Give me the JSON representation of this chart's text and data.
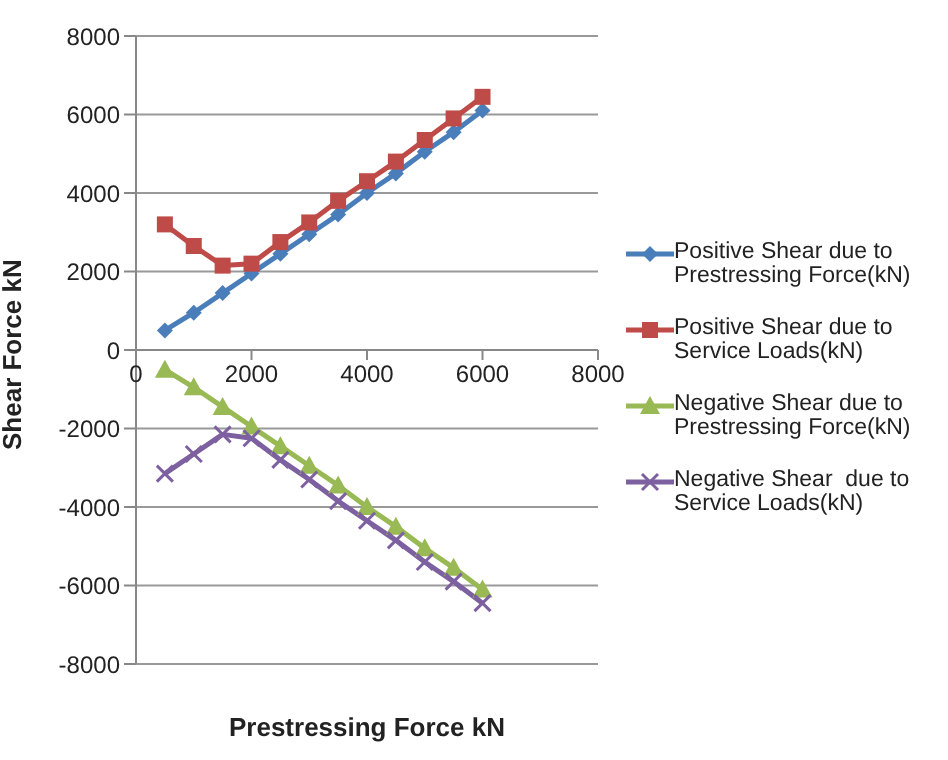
{
  "chart_data": {
    "type": "line",
    "xlabel": "Prestressing Force kN",
    "ylabel": "Shear Force kN",
    "x": [
      500,
      1000,
      1500,
      2000,
      2500,
      3000,
      3500,
      4000,
      4500,
      5000,
      5500,
      6000
    ],
    "xlim": [
      0,
      8000
    ],
    "xticks": [
      0,
      2000,
      4000,
      6000,
      8000
    ],
    "ylim": [
      -8000,
      8000
    ],
    "yticks": [
      -8000,
      -6000,
      -4000,
      -2000,
      0,
      2000,
      4000,
      6000,
      8000
    ],
    "grid": "y",
    "legend": "right",
    "series": [
      {
        "name": "Positive Shear due to Prestressing Force(kN)",
        "color": "#4a7ebb",
        "marker": "diamond",
        "values": [
          500,
          950,
          1450,
          1950,
          2450,
          2950,
          3450,
          4000,
          4500,
          5050,
          5550,
          6100
        ]
      },
      {
        "name": "Positive Shear due to Service Loads(kN)",
        "color": "#be4b48",
        "marker": "square",
        "values": [
          3200,
          2650,
          2150,
          2200,
          2750,
          3250,
          3800,
          4300,
          4800,
          5350,
          5900,
          6450
        ]
      },
      {
        "name": "Negative Shear due to Prestressing Force(kN)",
        "color": "#98b954",
        "marker": "triangle",
        "values": [
          -500,
          -950,
          -1450,
          -1950,
          -2450,
          -2950,
          -3450,
          -4000,
          -4500,
          -5050,
          -5550,
          -6100
        ]
      },
      {
        "name": "Negative Shear  due to Service Loads(kN)",
        "color": "#7d60a0",
        "marker": "cross",
        "values": [
          -3150,
          -2650,
          -2150,
          -2250,
          -2800,
          -3300,
          -3850,
          -4350,
          -4850,
          -5400,
          -5900,
          -6450
        ]
      }
    ]
  }
}
